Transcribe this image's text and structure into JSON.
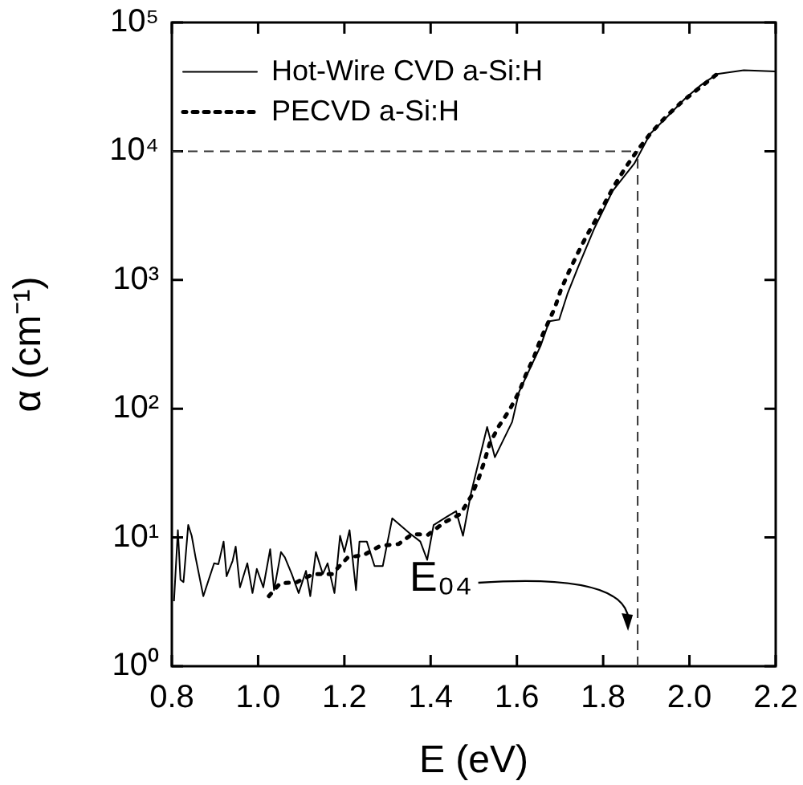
{
  "chart_data": {
    "type": "line",
    "xlabel": "E (eV)",
    "ylabel": "α (cm⁻¹)",
    "log": "y",
    "xlim": [
      0.8,
      2.2
    ],
    "xticks": [
      {
        "value": 0.8,
        "label": "0.8"
      },
      {
        "value": 1,
        "label": "1.0"
      },
      {
        "value": 1.2,
        "label": "1.2"
      },
      {
        "value": 1.4,
        "label": "1.4"
      },
      {
        "value": 1.6,
        "label": "1.6"
      },
      {
        "value": 1.8,
        "label": "1.8"
      },
      {
        "value": 2,
        "label": "2.0"
      },
      {
        "value": 2.2,
        "label": "2.2"
      }
    ],
    "ylim": [
      1,
      100000
    ],
    "yticks": [
      {
        "value": 1,
        "label": "10⁰"
      },
      {
        "value": 10,
        "label": "10¹"
      },
      {
        "value": 100,
        "label": "10²"
      },
      {
        "value": 1000,
        "label": "10³"
      },
      {
        "value": 10000,
        "label": "10⁴"
      },
      {
        "value": 100000,
        "label": "10⁵"
      }
    ],
    "legend": "top left",
    "grid": false,
    "series": [
      {
        "name": "Hot-Wire CVD a-Si:H",
        "color": "#000000",
        "line_style": "solid",
        "x": [
          0.805,
          0.814,
          0.82,
          0.827,
          0.838,
          0.846,
          0.855,
          0.873,
          0.898,
          0.908,
          0.92,
          0.927,
          0.941,
          0.948,
          0.958,
          0.975,
          0.987,
          0.997,
          1.012,
          1.028,
          1.037,
          1.053,
          1.062,
          1.078,
          1.094,
          1.111,
          1.121,
          1.134,
          1.15,
          1.161,
          1.177,
          1.19,
          1.2,
          1.212,
          1.227,
          1.235,
          1.252,
          1.27,
          1.289,
          1.311,
          1.351,
          1.376,
          1.392,
          1.407,
          1.438,
          1.459,
          1.475,
          1.494,
          1.531,
          1.549,
          1.589,
          1.605,
          1.655,
          1.675,
          1.698,
          1.717,
          1.742,
          1.779,
          1.822,
          1.872,
          1.909,
          1.953,
          1.99,
          2.027,
          2.064,
          2.126,
          2.2
        ],
        "values": [
          3.2,
          11.4,
          4.7,
          4.5,
          12.5,
          10.3,
          7,
          3.5,
          6.3,
          6.2,
          9.3,
          5,
          6.6,
          8.5,
          4.1,
          6.3,
          3.7,
          5.7,
          4.1,
          8.1,
          3.9,
          7.7,
          7,
          5.2,
          3.7,
          5.5,
          3.5,
          7.7,
          5.2,
          6.3,
          3.7,
          10.3,
          7.7,
          11.4,
          3.9,
          9.3,
          9.3,
          6,
          6,
          14.1,
          10.8,
          9.3,
          6.7,
          12.5,
          14.5,
          16,
          10.3,
          22.4,
          72,
          42,
          79,
          135,
          308,
          478,
          492,
          776,
          1262,
          2495,
          4920,
          8000,
          13650,
          19190,
          25650,
          32700,
          39700,
          42550,
          41700
        ]
      },
      {
        "name": "PECVD a-Si:H",
        "color": "#000000",
        "line_style": "dotted",
        "x": [
          1.025,
          1.051,
          1.09,
          1.128,
          1.171,
          1.208,
          1.245,
          1.283,
          1.326,
          1.357,
          1.394,
          1.432,
          1.469,
          1.494,
          1.512,
          1.525,
          1.537,
          1.558,
          1.583,
          1.605,
          1.62,
          1.639,
          1.655,
          1.688,
          1.702,
          1.721,
          1.739,
          1.76,
          1.783,
          1.804,
          1.826,
          1.851,
          1.878,
          1.909,
          1.946,
          1.984,
          2.027,
          2.064
        ],
        "values": [
          3.5,
          4.4,
          4.5,
          5.2,
          5.2,
          7,
          7.3,
          8.6,
          8.9,
          10.6,
          10.5,
          13.1,
          15.2,
          20.9,
          29.1,
          39.4,
          53.7,
          73,
          98,
          135,
          181,
          249,
          347,
          609,
          839,
          1169,
          1563,
          2154,
          2938,
          3972,
          5420,
          7396,
          10000,
          13650,
          18620,
          24430,
          31770,
          39700
        ]
      }
    ],
    "ref_lines": [
      {
        "axis": "y",
        "value": 10000,
        "line_style": "dashed"
      },
      {
        "axis": "x",
        "value": 1.88,
        "line_style": "dashed"
      }
    ],
    "annotations": [
      "E₀₄"
    ]
  }
}
